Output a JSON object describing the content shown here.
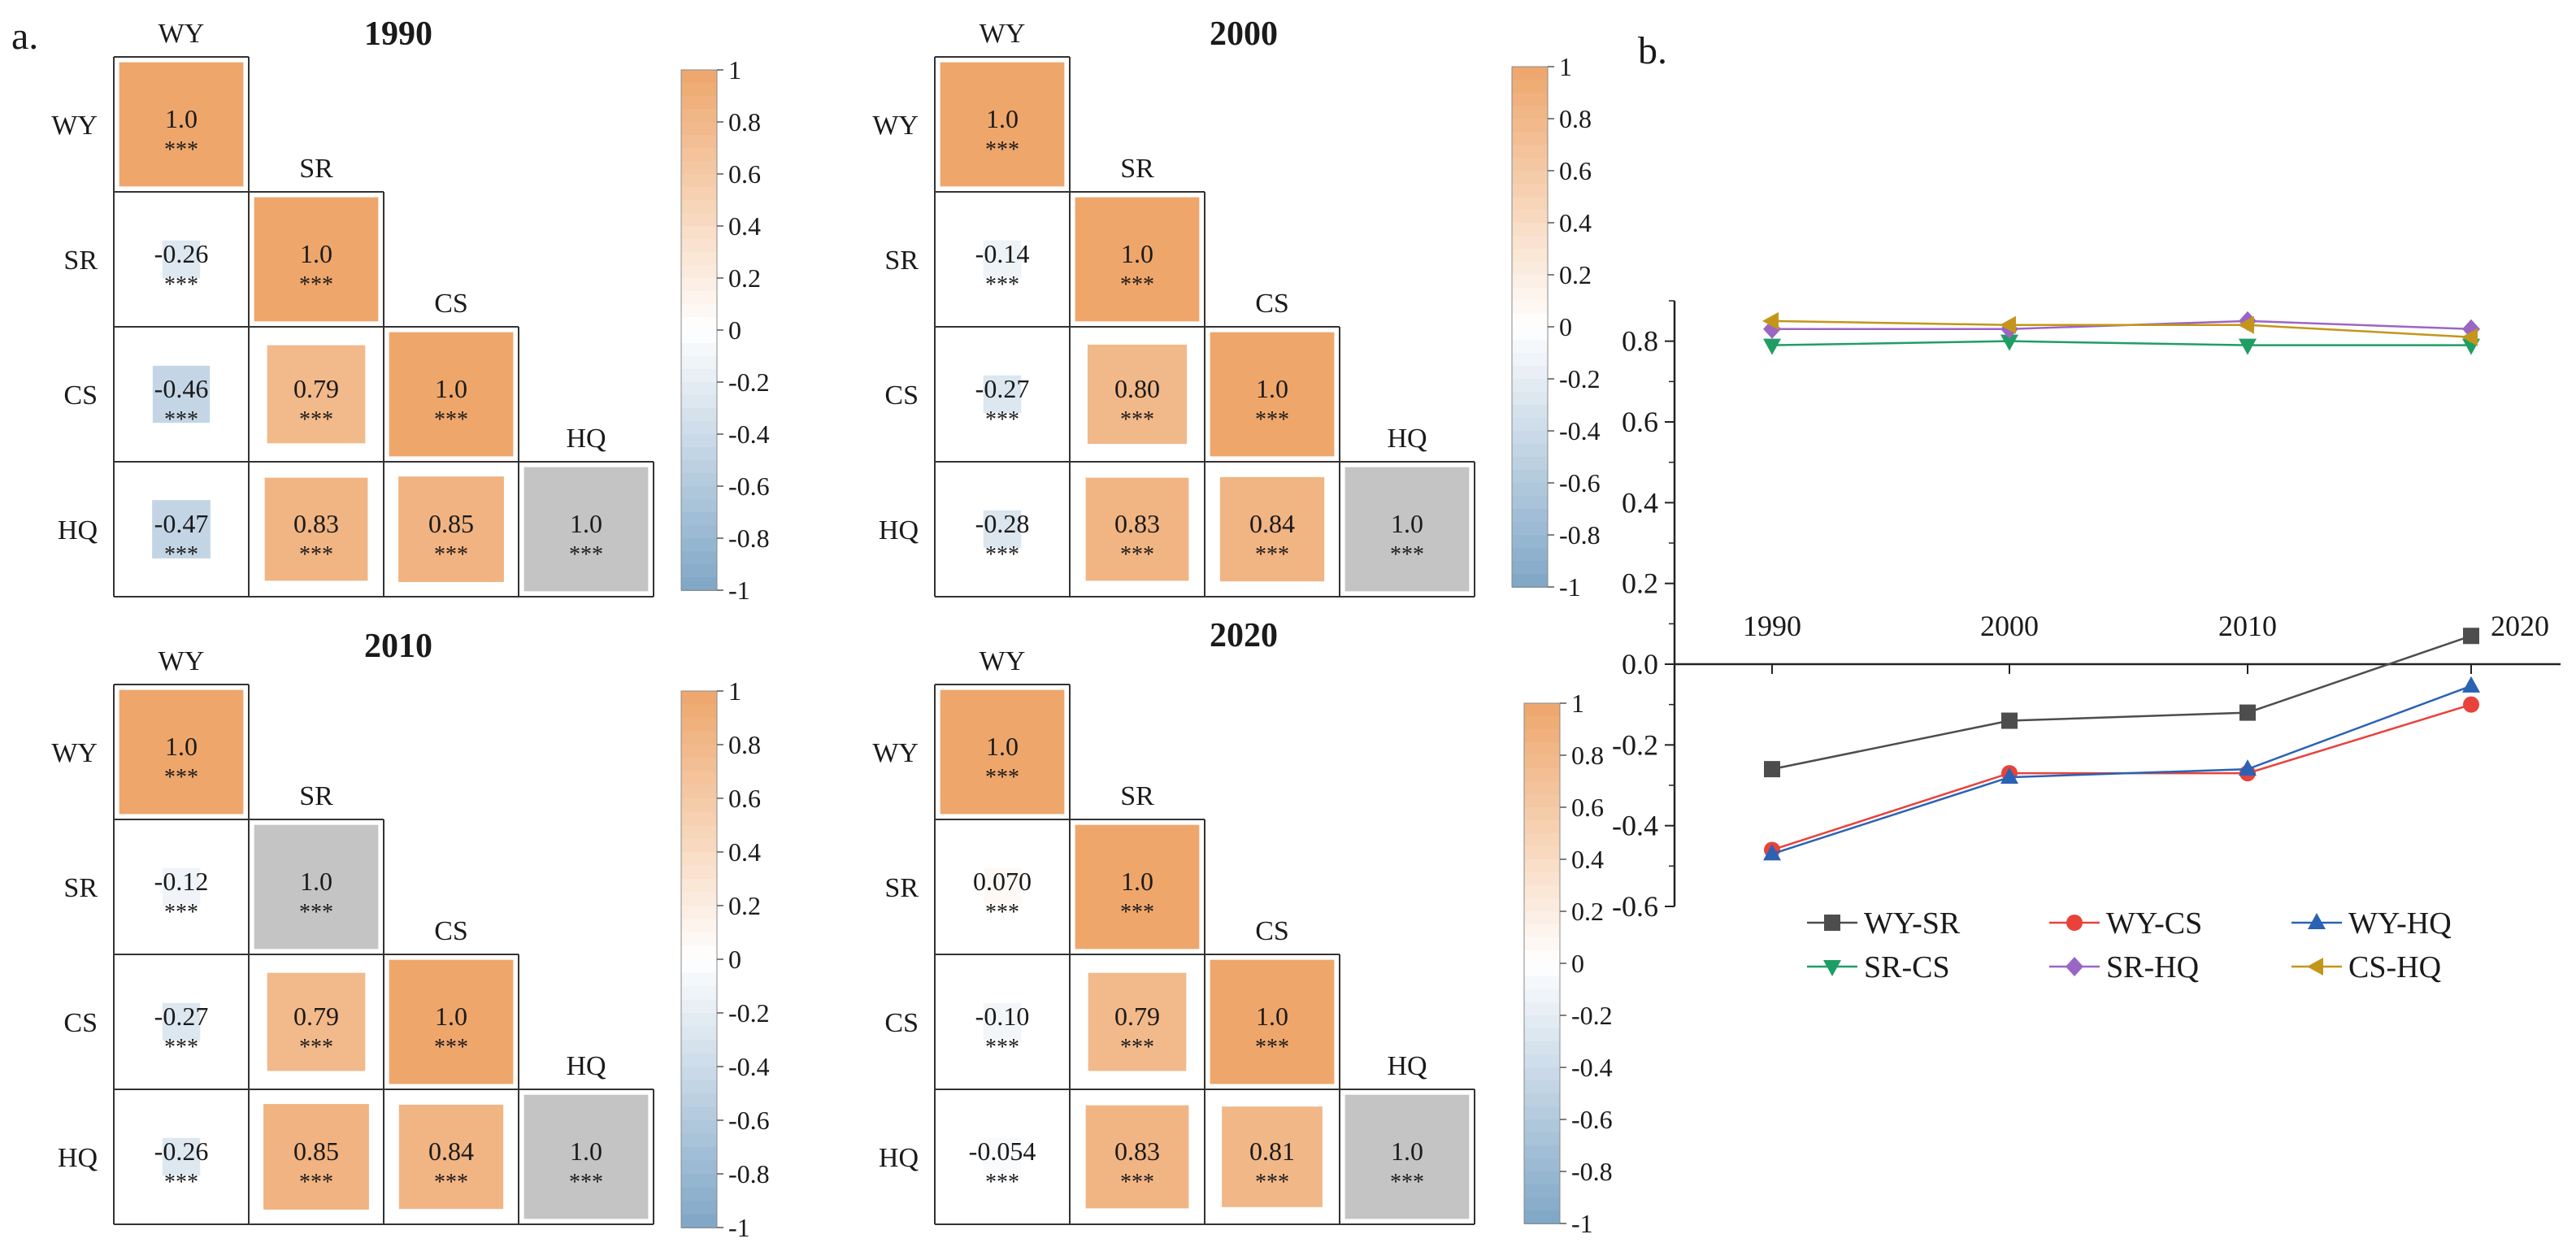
{
  "panel_labels": {
    "a": "a.",
    "b": "b."
  },
  "significance_mark": "***",
  "variables": [
    "WY",
    "SR",
    "CS",
    "HQ"
  ],
  "colors": {
    "positive_high": "#eea66b",
    "negative_high": "#7fa6c6",
    "neutral": "#ffffff",
    "gray_cell": "#c4c4c4",
    "series": {
      "WY-SR": "#4d4d4d",
      "WY-CS": "#e8423a",
      "WY-HQ": "#2a62b4",
      "SR-CS": "#1f9e64",
      "SR-HQ": "#9b66c3",
      "CS-HQ": "#c3961a"
    }
  },
  "colorbar": {
    "tick_labels": [
      "1",
      "0.8",
      "0.6",
      "0.4",
      "0.2",
      "0",
      "-0.2",
      "-0.4",
      "-0.6",
      "-0.8",
      "-1"
    ],
    "tick_values": [
      1,
      0.8,
      0.6,
      0.4,
      0.2,
      0,
      -0.2,
      -0.4,
      -0.6,
      -0.8,
      -1
    ]
  },
  "chart_data": [
    {
      "type": "heatmap",
      "title": "1990",
      "matrix": [
        [
          1.0,
          null,
          null,
          null
        ],
        [
          -0.26,
          1.0,
          null,
          null
        ],
        [
          -0.46,
          0.79,
          1.0,
          null
        ],
        [
          -0.47,
          0.83,
          0.85,
          1.0
        ]
      ],
      "labels": [
        [
          "1.0",
          "",
          "",
          ""
        ],
        [
          "-0.26",
          "1.0",
          "",
          ""
        ],
        [
          "-0.46",
          "0.79",
          "1.0",
          ""
        ],
        [
          "-0.47",
          "0.83",
          "0.85",
          "1.0"
        ]
      ],
      "gray_cells": [
        [
          3,
          3
        ]
      ]
    },
    {
      "type": "heatmap",
      "title": "2000",
      "matrix": [
        [
          1.0,
          null,
          null,
          null
        ],
        [
          -0.14,
          1.0,
          null,
          null
        ],
        [
          -0.27,
          0.8,
          1.0,
          null
        ],
        [
          -0.28,
          0.83,
          0.84,
          1.0
        ]
      ],
      "labels": [
        [
          "1.0",
          "",
          "",
          ""
        ],
        [
          "-0.14",
          "1.0",
          "",
          ""
        ],
        [
          "-0.27",
          "0.80",
          "1.0",
          ""
        ],
        [
          "-0.28",
          "0.83",
          "0.84",
          "1.0"
        ]
      ],
      "gray_cells": [
        [
          3,
          3
        ]
      ]
    },
    {
      "type": "heatmap",
      "title": "2010",
      "matrix": [
        [
          1.0,
          null,
          null,
          null
        ],
        [
          -0.12,
          1.0,
          null,
          null
        ],
        [
          -0.27,
          0.79,
          1.0,
          null
        ],
        [
          -0.26,
          0.85,
          0.84,
          1.0
        ]
      ],
      "labels": [
        [
          "1.0",
          "",
          "",
          ""
        ],
        [
          "-0.12",
          "1.0",
          "",
          ""
        ],
        [
          "-0.27",
          "0.79",
          "1.0",
          ""
        ],
        [
          "-0.26",
          "0.85",
          "0.84",
          "1.0"
        ]
      ],
      "gray_cells": [
        [
          1,
          1
        ],
        [
          3,
          3
        ]
      ]
    },
    {
      "type": "heatmap",
      "title": "2020",
      "matrix": [
        [
          1.0,
          null,
          null,
          null
        ],
        [
          0.07,
          1.0,
          null,
          null
        ],
        [
          -0.1,
          0.79,
          1.0,
          null
        ],
        [
          -0.054,
          0.83,
          0.81,
          1.0
        ]
      ],
      "labels": [
        [
          "1.0",
          "",
          "",
          ""
        ],
        [
          "0.070",
          "1.0",
          "",
          ""
        ],
        [
          "-0.10",
          "0.79",
          "1.0",
          ""
        ],
        [
          "-0.054",
          "0.83",
          "0.81",
          "1.0"
        ]
      ],
      "gray_cells": [
        [
          3,
          3
        ]
      ]
    },
    {
      "type": "line",
      "title": "",
      "x": [
        "1990",
        "2000",
        "2010",
        "2020"
      ],
      "ylim": [
        -0.6,
        0.9
      ],
      "y_tick_labels": [
        "0.8",
        "0.6",
        "0.4",
        "0.2",
        "0.0",
        "-0.2",
        "-0.4",
        "-0.6"
      ],
      "y_tick_values": [
        0.8,
        0.6,
        0.4,
        0.2,
        0.0,
        -0.2,
        -0.4,
        -0.6
      ],
      "series": [
        {
          "name": "WY-SR",
          "marker": "square",
          "values": [
            -0.26,
            -0.14,
            -0.12,
            0.07
          ]
        },
        {
          "name": "WY-CS",
          "marker": "circle",
          "values": [
            -0.46,
            -0.27,
            -0.27,
            -0.1
          ]
        },
        {
          "name": "WY-HQ",
          "marker": "triangle-up",
          "values": [
            -0.47,
            -0.28,
            -0.26,
            -0.054
          ]
        },
        {
          "name": "SR-CS",
          "marker": "triangle-down",
          "values": [
            0.79,
            0.8,
            0.79,
            0.79
          ]
        },
        {
          "name": "SR-HQ",
          "marker": "diamond",
          "values": [
            0.83,
            0.83,
            0.85,
            0.83
          ]
        },
        {
          "name": "CS-HQ",
          "marker": "triangle-left",
          "values": [
            0.85,
            0.84,
            0.84,
            0.81
          ]
        }
      ],
      "legend": "bottom"
    }
  ]
}
